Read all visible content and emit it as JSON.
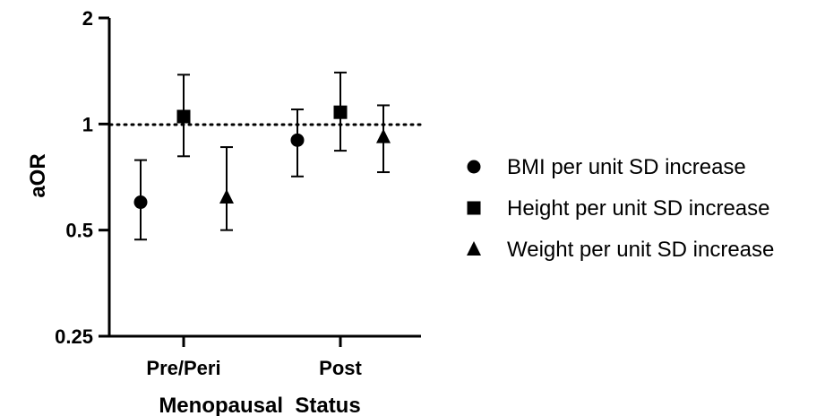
{
  "chart_data": {
    "type": "scatter",
    "title": "",
    "xlabel": "Menopausal  Status",
    "ylabel": "aOR",
    "y_scale": "log2",
    "ylim": [
      0.25,
      2
    ],
    "yticks": [
      0.25,
      0.5,
      1,
      2
    ],
    "ytick_labels": [
      "0.25",
      "0.5",
      "1",
      "2"
    ],
    "categories": [
      "Pre/Peri",
      "Post"
    ],
    "reference_line": {
      "y": 1,
      "style": "dotted"
    },
    "legend_position": "right",
    "series": [
      {
        "name": "BMI per unit SD increase",
        "marker": "circle",
        "values": [
          0.6,
          0.9
        ],
        "lower": [
          0.47,
          0.71
        ],
        "upper": [
          0.79,
          1.1
        ]
      },
      {
        "name": "Height per unit SD increase",
        "marker": "square",
        "values": [
          1.05,
          1.08
        ],
        "lower": [
          0.81,
          0.84
        ],
        "upper": [
          1.38,
          1.4
        ]
      },
      {
        "name": "Weight per unit SD increase",
        "marker": "triangle",
        "values": [
          0.62,
          0.92
        ],
        "lower": [
          0.5,
          0.73
        ],
        "upper": [
          0.86,
          1.13
        ]
      }
    ]
  }
}
